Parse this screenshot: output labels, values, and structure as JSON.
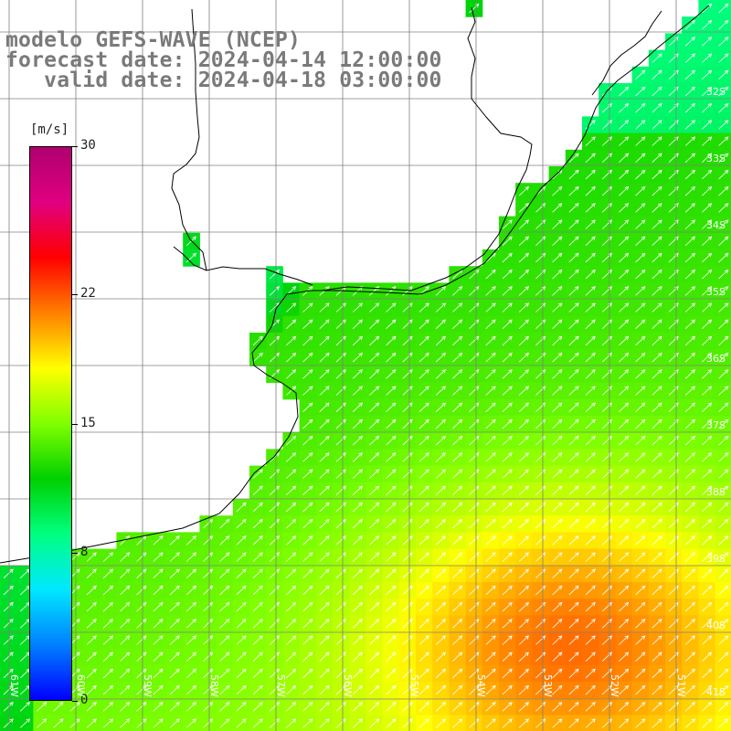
{
  "title": {
    "line1": "modelo GEFS-WAVE (NCEP)",
    "line2": "forecast date: 2024-04-14 12:00:00",
    "line3": "   valid date: 2024-04-18 03:00:00"
  },
  "colorbar": {
    "unit": "[m/s]",
    "ticks": [
      "30",
      "22",
      "15",
      "8",
      "0"
    ],
    "tick_values": [
      30,
      22,
      15,
      8,
      0
    ],
    "range": [
      0,
      30
    ],
    "colors": [
      "#0000ff",
      "#0080ff",
      "#00e8ff",
      "#00ff80",
      "#00d000",
      "#80ff00",
      "#ffff00",
      "#ff8000",
      "#ff0000",
      "#e00080",
      "#b00070"
    ]
  },
  "map": {
    "lat_labels": [
      "32S",
      "33S",
      "34S",
      "35S",
      "36S",
      "37S",
      "38S",
      "39S",
      "40S",
      "41S"
    ],
    "lon_labels": [
      "61W",
      "60W",
      "59W",
      "58W",
      "57W",
      "56W",
      "55W",
      "54W",
      "53W",
      "52W",
      "51W"
    ],
    "land_color": "#ffffff",
    "coast_color": "#000000",
    "grid_color": "#808080",
    "arrow_color": "#ffffff"
  }
}
